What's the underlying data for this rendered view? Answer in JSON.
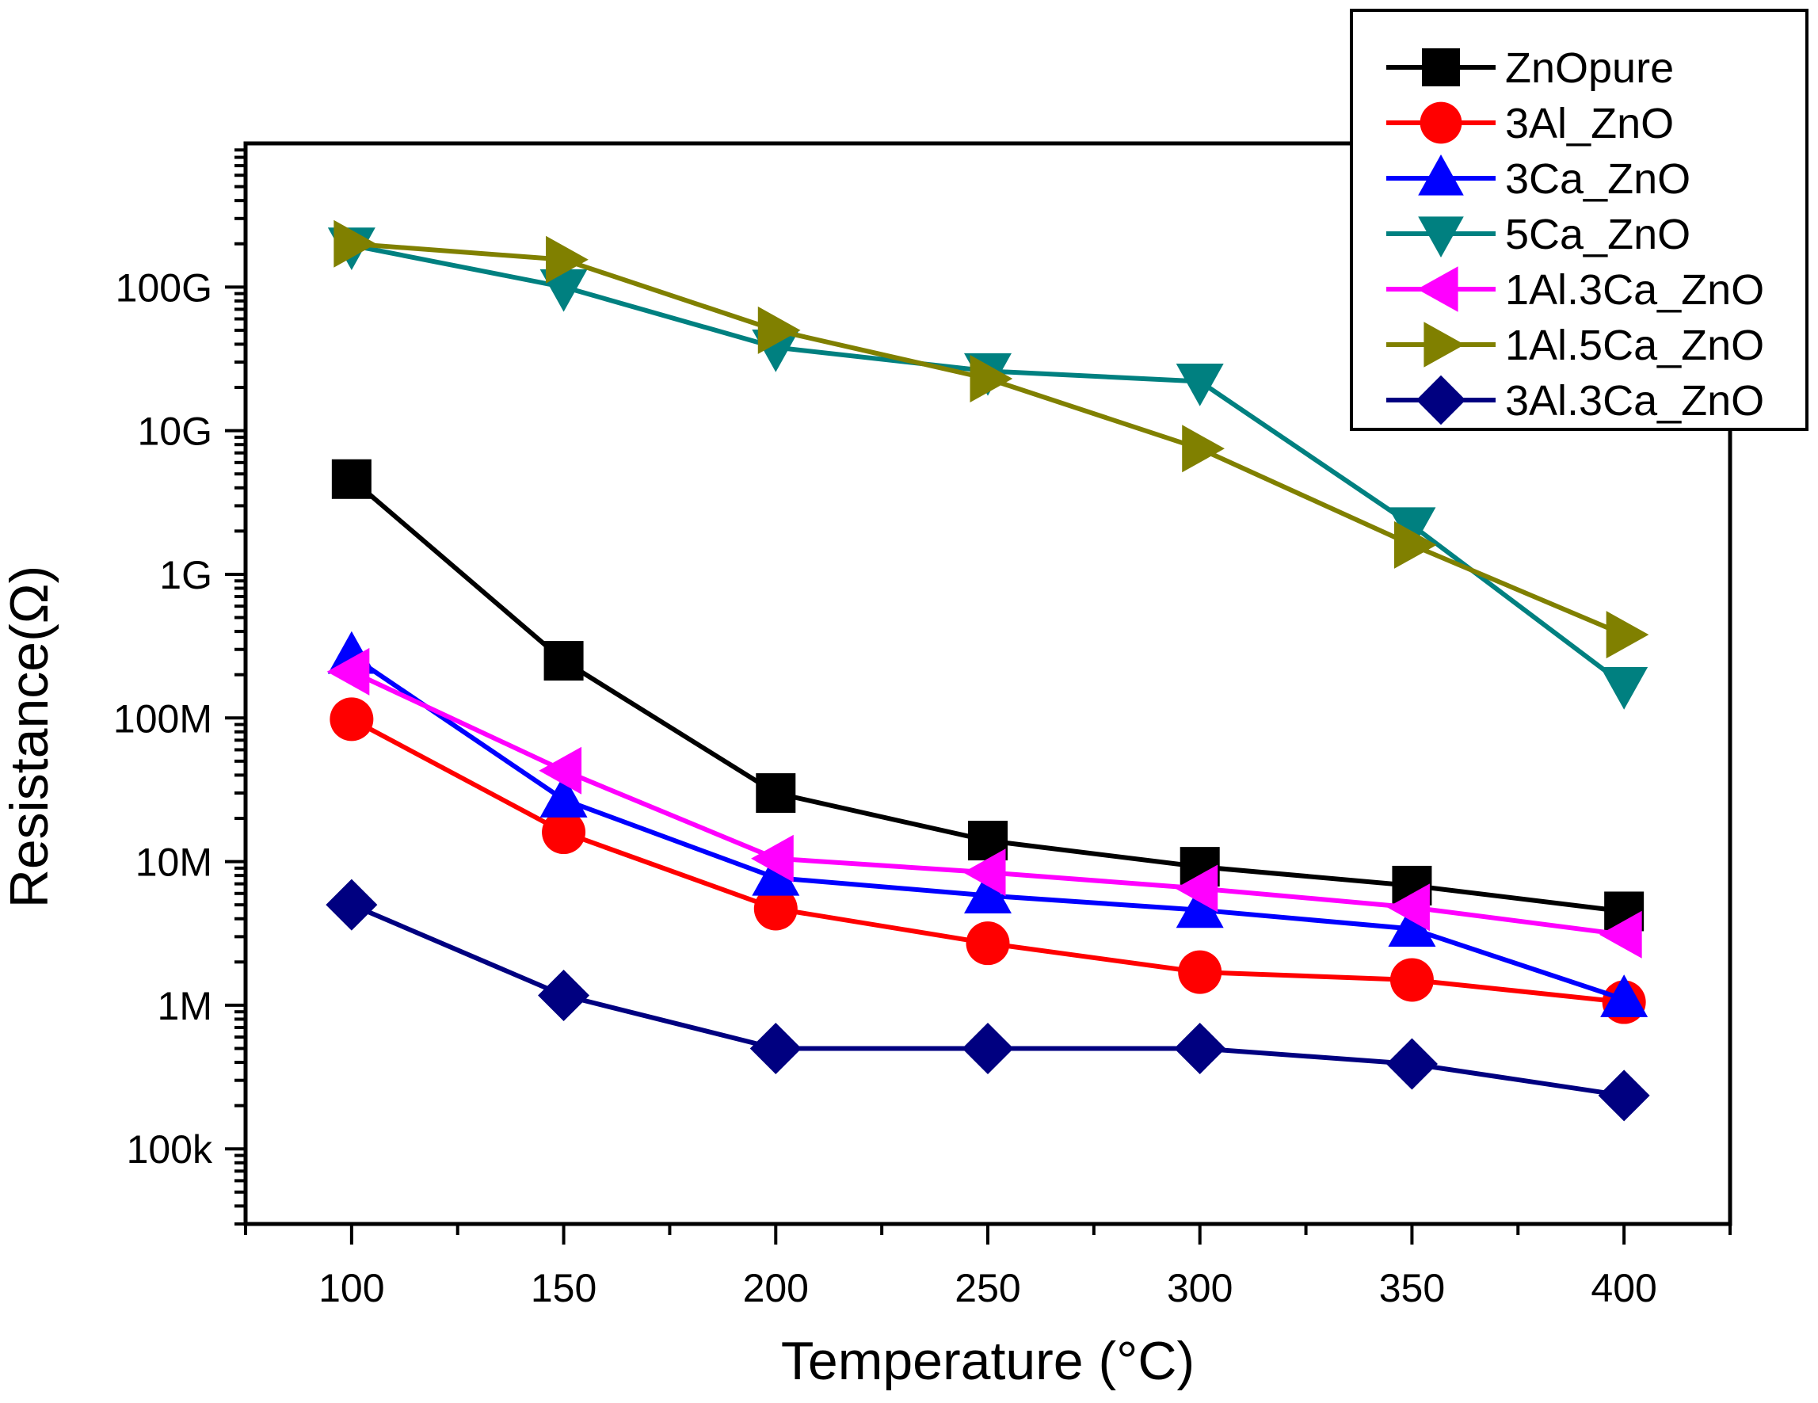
{
  "chart_data": {
    "type": "line",
    "title": "",
    "xlabel": "Temperature (°C)",
    "ylabel": "Resistance(Ω)",
    "x": [
      100,
      150,
      200,
      250,
      300,
      350,
      400
    ],
    "xlim": [
      75,
      425
    ],
    "x_ticks": [
      100,
      150,
      200,
      250,
      300,
      350,
      400
    ],
    "x_tick_labels": [
      "100",
      "150",
      "200",
      "250",
      "300",
      "350",
      "400"
    ],
    "y_scale": "log",
    "ylim": [
      30000,
      1000000000000
    ],
    "y_ticks": [
      100000,
      1000000,
      10000000,
      100000000,
      1000000000,
      10000000000,
      100000000000
    ],
    "y_tick_labels": [
      "100k",
      "1M",
      "10M",
      "100M",
      "1G",
      "10G",
      "100G"
    ],
    "legend_position": "top-right",
    "series": [
      {
        "name": "ZnOpure",
        "color": "#000000",
        "marker": "square",
        "values": [
          4600000000,
          250000000,
          30000000,
          14000000,
          9200000,
          6800000,
          4500000
        ]
      },
      {
        "name": "3Al_ZnO",
        "color": "#ff0000",
        "marker": "circle",
        "values": [
          98000000,
          16000000,
          4700000,
          2700000,
          1700000,
          1500000,
          1050000
        ]
      },
      {
        "name": "3Ca_ZnO",
        "color": "#0000ff",
        "marker": "triangle-up",
        "values": [
          270000000,
          27000000,
          7700000,
          5800000,
          4600000,
          3400000,
          1100000
        ]
      },
      {
        "name": "5Ca_ZnO",
        "color": "#008080",
        "marker": "triangle-down",
        "values": [
          195000000000,
          100000000000,
          38000000000,
          26000000000,
          22000000000,
          2200000000,
          170000000
        ]
      },
      {
        "name": "1Al.3Ca_ZnO",
        "color": "#ff00ff",
        "marker": "triangle-left",
        "values": [
          210000000,
          43000000,
          10500000,
          8400000,
          6500000,
          4800000,
          3100000
        ]
      },
      {
        "name": "1Al.5Ca_ZnO",
        "color": "#808000",
        "marker": "triangle-right",
        "values": [
          200000000000,
          155000000000,
          50000000000,
          23000000000,
          7500000000,
          1600000000,
          380000000
        ]
      },
      {
        "name": "3Al.3Ca_ZnO",
        "color": "#000080",
        "marker": "diamond",
        "values": [
          5000000,
          1170000,
          500000,
          500000,
          500000,
          390000,
          235000
        ]
      }
    ]
  }
}
